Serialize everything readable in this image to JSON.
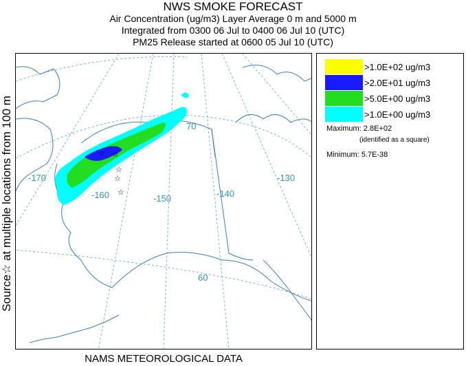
{
  "title": {
    "line1": "NWS SMOKE FORECAST",
    "line2": "Air Concentration (ug/m3) Layer Average    0 m and  5000 m",
    "line3": "Integrated from 0300 06 Jul to 0400 06 Jul 10 (UTC)",
    "line4": "PM25 Release started at 0600 05 Jul 10 (UTC)"
  },
  "left_label": "Source☆  at multiple locations  from  100 m",
  "bottom_label": "NAMS METEOROLOGICAL DATA",
  "map": {
    "longitude_labels": [
      "-170",
      "-160",
      "-150",
      "-140",
      "-130"
    ],
    "latitude_labels": [
      "70",
      "60"
    ],
    "colors": {
      "coast": "#3a7fb5",
      "grid": "#5a9ec9",
      "cyan": "#00ffff",
      "green": "#22dd22",
      "blue": "#1a1aff",
      "yellow": "#ffff00"
    }
  },
  "legend": {
    "items": [
      {
        "label": ">1.0E+02 ug/m3",
        "color": "#ffff00"
      },
      {
        "label": ">2.0E+01 ug/m3",
        "color": "#1a1aff"
      },
      {
        "label": ">5.0E+00 ug/m3",
        "color": "#22dd22"
      },
      {
        "label": ">1.0E+00 ug/m3",
        "color": "#00ffff"
      }
    ],
    "maximum": "Maximum: 2.8E+02",
    "maximum_note": "(identified as a square)",
    "minimum": "Minimum: 5.7E-38"
  }
}
